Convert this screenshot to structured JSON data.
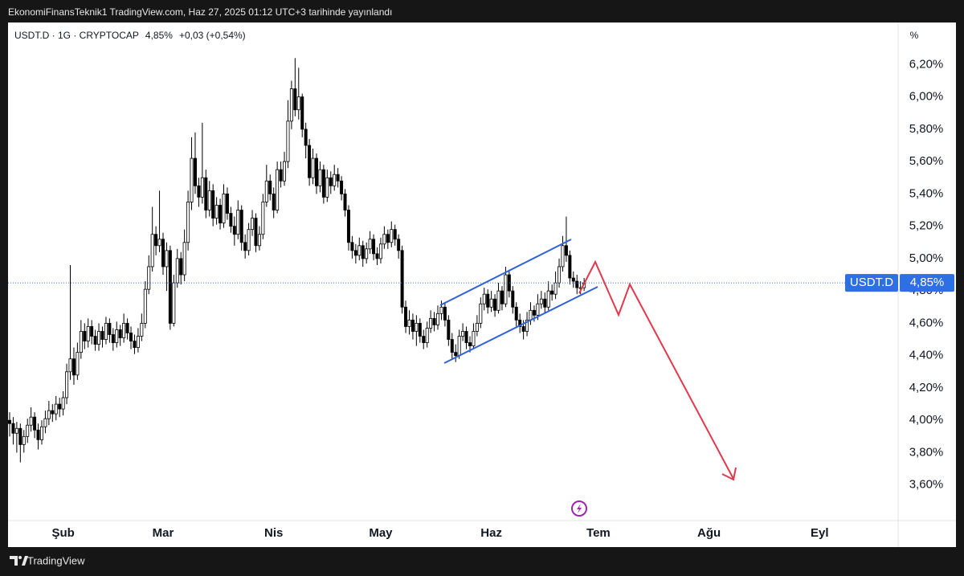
{
  "published": "EkonomiFinansTeknik1 TradingView.com, Haz 27, 2025 01:12 UTC+3 tarihinde yayınlandı",
  "footer": "TradingView",
  "chart_data": {
    "type": "candlestick",
    "symbol": "USDT.D · 1G · CRYPTOCAP",
    "price": "4,85%",
    "change": "+0,03 (+0,54%)",
    "axis_unit": "%",
    "symbol_label": "USDT.D",
    "last_price": {
      "value": 4.85,
      "label": "4,85%"
    },
    "up_color": "#ffffff",
    "down_color": "#000000",
    "wick_color": "#000000",
    "price_line_color": "#2f6fe4",
    "grid": false,
    "ylim": [
      3.38,
      6.46
    ],
    "yticks": [
      {
        "value": 3.6,
        "label": "3,60%"
      },
      {
        "value": 3.8,
        "label": "3,80%"
      },
      {
        "value": 4.0,
        "label": "4,00%"
      },
      {
        "value": 4.2,
        "label": "4,20%"
      },
      {
        "value": 4.4,
        "label": "4,40%"
      },
      {
        "value": 4.6,
        "label": "4,60%"
      },
      {
        "value": 4.8,
        "label": "4,80%"
      },
      {
        "value": 5.0,
        "label": "5,00%"
      },
      {
        "value": 5.2,
        "label": "5,20%"
      },
      {
        "value": 5.4,
        "label": "5,40%"
      },
      {
        "value": 5.6,
        "label": "5,60%"
      },
      {
        "value": 5.8,
        "label": "5,80%"
      },
      {
        "value": 6.0,
        "label": "6,00%"
      },
      {
        "value": 6.2,
        "label": "6,20%"
      }
    ],
    "categories": [
      null,
      null,
      null,
      null,
      null,
      null,
      null,
      null,
      null,
      null,
      null,
      null,
      null,
      null,
      null,
      "Şub",
      null,
      null,
      null,
      null,
      null,
      null,
      null,
      null,
      null,
      null,
      null,
      null,
      null,
      null,
      null,
      null,
      null,
      null,
      null,
      null,
      null,
      null,
      null,
      null,
      null,
      null,
      null,
      "Mar",
      null,
      null,
      null,
      null,
      null,
      null,
      null,
      null,
      null,
      null,
      null,
      null,
      null,
      null,
      null,
      null,
      null,
      null,
      null,
      null,
      null,
      null,
      null,
      null,
      null,
      null,
      null,
      null,
      null,
      null,
      "Nis",
      null,
      null,
      null,
      null,
      null,
      null,
      null,
      null,
      null,
      null,
      null,
      null,
      null,
      null,
      null,
      null,
      null,
      null,
      null,
      null,
      null,
      null,
      null,
      null,
      null,
      null,
      null,
      null,
      null,
      "May",
      null,
      null,
      null,
      null,
      null,
      null,
      null,
      null,
      null,
      null,
      null,
      null,
      null,
      null,
      null,
      null,
      null,
      null,
      null,
      null,
      null,
      null,
      null,
      null,
      null,
      null,
      null,
      null,
      null,
      null,
      "Haz",
      null,
      null,
      null,
      null,
      null,
      null,
      null,
      null,
      null,
      null,
      null,
      null,
      null,
      null,
      null,
      null,
      null,
      null,
      null,
      null,
      null,
      null,
      null,
      null,
      null,
      null,
      null,
      null,
      null,
      "Tem",
      null,
      null,
      null,
      null,
      null,
      null,
      null,
      null,
      null,
      null,
      null,
      null,
      null,
      null,
      null,
      null,
      null,
      null,
      null,
      null,
      null,
      null,
      null,
      null,
      null,
      null,
      null,
      null,
      null,
      null,
      "Ağu",
      null,
      null,
      null,
      null,
      null,
      null,
      null,
      null,
      null,
      null,
      null,
      null,
      null,
      null,
      null,
      null,
      null,
      null,
      null,
      null,
      null,
      null,
      null,
      null,
      null,
      null,
      null,
      null,
      null,
      null,
      "Eyl",
      null,
      null,
      null,
      null,
      null,
      null,
      null,
      null,
      null,
      null,
      null,
      null,
      null,
      null,
      null,
      null,
      null,
      null,
      null,
      null,
      null,
      null
    ],
    "open": [
      4.0,
      3.98,
      3.92,
      3.95,
      3.85,
      3.9,
      3.97,
      4.02,
      3.94,
      3.88,
      3.96,
      4.01,
      4.06,
      4.04,
      4.1,
      4.07,
      4.14,
      4.3,
      4.38,
      4.28,
      4.42,
      4.55,
      4.49,
      4.58,
      4.52,
      4.47,
      4.55,
      4.5,
      4.6,
      4.53,
      4.48,
      4.56,
      4.51,
      4.6,
      4.54,
      4.49,
      4.45,
      4.52,
      4.6,
      4.81,
      4.95,
      5.15,
      5.08,
      5.12,
      4.95,
      5.05,
      4.6,
      4.85,
      5.0,
      4.9,
      5.1,
      5.35,
      5.62,
      5.45,
      5.38,
      5.5,
      5.3,
      5.42,
      5.25,
      5.33,
      5.22,
      5.4,
      5.28,
      5.2,
      5.15,
      5.3,
      5.1,
      5.05,
      5.18,
      5.25,
      5.08,
      5.15,
      5.35,
      5.48,
      5.4,
      5.3,
      5.55,
      5.48,
      5.6,
      5.85,
      6.05,
      5.92,
      6.0,
      5.8,
      5.7,
      5.5,
      5.62,
      5.45,
      5.55,
      5.38,
      5.5,
      5.45,
      5.52,
      5.48,
      5.4,
      5.3,
      5.1,
      5.05,
      5.02,
      5.08,
      5.0,
      5.06,
      5.12,
      5.03,
      5.0,
      5.09,
      5.15,
      5.1,
      5.18,
      5.12,
      5.05,
      4.7,
      4.58,
      4.62,
      4.55,
      4.6,
      4.52,
      4.48,
      4.57,
      4.63,
      4.59,
      4.66,
      4.7,
      4.62,
      4.5,
      4.42,
      4.4,
      4.52,
      4.55,
      4.48,
      4.46,
      4.55,
      4.6,
      4.72,
      4.78,
      4.7,
      4.75,
      4.68,
      4.8,
      4.72,
      4.9,
      4.8,
      4.7,
      4.62,
      4.58,
      4.55,
      4.62,
      4.68,
      4.65,
      4.72,
      4.75,
      4.7,
      4.8,
      4.78,
      4.85,
      4.95,
      5.08,
      5.02,
      4.88,
      4.86,
      4.82,
      4.82,
      null,
      null,
      null,
      null,
      null,
      null,
      null,
      null,
      null,
      null,
      null,
      null,
      null,
      null,
      null,
      null,
      null,
      null,
      null,
      null,
      null,
      null,
      null,
      null,
      null,
      null,
      null,
      null,
      null,
      null,
      null,
      null,
      null,
      null,
      null,
      null,
      null,
      null,
      null,
      null,
      null,
      null,
      null,
      null,
      null,
      null,
      null,
      null,
      null,
      null,
      null,
      null,
      null,
      null,
      null,
      null,
      null,
      null,
      null,
      null,
      null,
      null,
      null,
      null,
      null,
      null,
      null,
      null,
      null,
      null,
      null,
      null,
      null,
      null,
      null,
      null,
      null,
      null,
      null,
      null,
      null,
      null,
      null,
      null,
      null,
      null,
      null,
      null
    ],
    "high": [
      4.05,
      4.02,
      3.99,
      3.98,
      3.94,
      4.01,
      4.08,
      4.05,
      3.98,
      4.0,
      4.06,
      4.12,
      4.1,
      4.15,
      4.14,
      4.18,
      4.35,
      4.96,
      4.45,
      4.48,
      4.62,
      4.6,
      4.63,
      4.62,
      4.56,
      4.6,
      4.58,
      4.64,
      4.63,
      4.57,
      4.61,
      4.59,
      4.66,
      4.63,
      4.58,
      4.53,
      4.57,
      4.66,
      4.86,
      5.02,
      5.32,
      5.2,
      5.42,
      5.16,
      5.1,
      5.08,
      4.9,
      5.06,
      5.04,
      5.18,
      5.42,
      5.75,
      5.78,
      5.5,
      5.84,
      5.55,
      5.48,
      5.46,
      5.38,
      5.37,
      5.46,
      5.44,
      5.32,
      5.26,
      5.36,
      5.33,
      5.15,
      5.22,
      5.3,
      5.28,
      5.2,
      5.4,
      5.58,
      5.52,
      5.44,
      5.6,
      5.6,
      5.66,
      5.98,
      6.1,
      6.24,
      6.18,
      6.02,
      5.84,
      5.74,
      5.68,
      5.65,
      5.6,
      5.58,
      5.55,
      5.54,
      5.58,
      5.56,
      5.51,
      5.43,
      5.33,
      5.14,
      5.09,
      5.13,
      5.11,
      5.1,
      5.17,
      5.15,
      5.07,
      5.13,
      5.2,
      5.18,
      5.23,
      5.21,
      5.15,
      5.08,
      4.74,
      4.68,
      4.66,
      4.65,
      4.63,
      4.56,
      4.61,
      4.68,
      4.67,
      4.71,
      4.74,
      4.73,
      4.65,
      4.54,
      4.47,
      4.56,
      4.6,
      4.58,
      4.52,
      4.6,
      4.65,
      4.76,
      4.82,
      4.81,
      4.8,
      4.78,
      4.85,
      4.83,
      4.95,
      4.93,
      4.83,
      4.73,
      4.66,
      4.62,
      4.67,
      4.73,
      4.71,
      4.78,
      4.8,
      4.79,
      4.86,
      4.84,
      4.92,
      5.0,
      5.14,
      5.26,
      5.05,
      4.92,
      4.9,
      4.86,
      4.88,
      null,
      null,
      null,
      null,
      null,
      null,
      null,
      null,
      null,
      null,
      null,
      null,
      null,
      null,
      null,
      null,
      null,
      null,
      null,
      null,
      null,
      null,
      null,
      null,
      null,
      null,
      null,
      null,
      null,
      null,
      null,
      null,
      null,
      null,
      null,
      null,
      null,
      null,
      null,
      null,
      null,
      null,
      null,
      null,
      null,
      null,
      null,
      null,
      null,
      null,
      null,
      null,
      null,
      null,
      null,
      null,
      null,
      null,
      null,
      null,
      null,
      null,
      null,
      null,
      null,
      null,
      null,
      null,
      null,
      null,
      null,
      null,
      null,
      null,
      null,
      null,
      null,
      null,
      null,
      null,
      null,
      null,
      null,
      null,
      null,
      null,
      null,
      null
    ],
    "low": [
      3.9,
      3.85,
      3.8,
      3.74,
      3.8,
      3.86,
      3.93,
      3.89,
      3.82,
      3.85,
      3.92,
      3.97,
      3.99,
      4.0,
      4.02,
      4.03,
      4.1,
      4.25,
      4.22,
      4.25,
      4.38,
      4.44,
      4.45,
      4.47,
      4.43,
      4.43,
      4.45,
      4.47,
      4.48,
      4.43,
      4.45,
      4.46,
      4.48,
      4.5,
      4.44,
      4.41,
      4.42,
      4.49,
      4.57,
      4.78,
      4.92,
      5.02,
      5.04,
      4.9,
      4.8,
      4.56,
      4.58,
      4.82,
      4.84,
      4.86,
      5.05,
      5.3,
      5.4,
      5.32,
      5.34,
      5.25,
      5.26,
      5.2,
      5.21,
      5.18,
      5.19,
      5.24,
      5.16,
      5.08,
      5.12,
      5.05,
      5.0,
      5.02,
      5.14,
      5.04,
      5.05,
      5.12,
      5.32,
      5.36,
      5.25,
      5.28,
      5.44,
      5.45,
      5.56,
      5.8,
      5.88,
      5.86,
      5.75,
      5.62,
      5.45,
      5.46,
      5.4,
      5.41,
      5.34,
      5.35,
      5.4,
      5.42,
      5.44,
      5.36,
      5.26,
      5.05,
      5.0,
      4.97,
      4.99,
      4.95,
      4.97,
      5.03,
      4.99,
      4.96,
      4.97,
      5.06,
      5.06,
      5.07,
      5.08,
      5.0,
      4.66,
      4.54,
      4.53,
      4.5,
      4.46,
      4.48,
      4.44,
      4.45,
      4.54,
      4.55,
      4.56,
      4.62,
      4.58,
      4.46,
      4.38,
      4.36,
      4.38,
      4.49,
      4.44,
      4.42,
      4.44,
      4.52,
      4.57,
      4.68,
      4.66,
      4.67,
      4.64,
      4.66,
      4.68,
      4.7,
      4.76,
      4.66,
      4.58,
      4.54,
      4.5,
      4.52,
      4.59,
      4.61,
      4.62,
      4.69,
      4.66,
      4.68,
      4.74,
      4.75,
      4.82,
      4.92,
      4.98,
      4.84,
      4.82,
      4.78,
      4.78,
      4.8,
      null,
      null,
      null,
      null,
      null,
      null,
      null,
      null,
      null,
      null,
      null,
      null,
      null,
      null,
      null,
      null,
      null,
      null,
      null,
      null,
      null,
      null,
      null,
      null,
      null,
      null,
      null,
      null,
      null,
      null,
      null,
      null,
      null,
      null,
      null,
      null,
      null,
      null,
      null,
      null,
      null,
      null,
      null,
      null,
      null,
      null,
      null,
      null,
      null,
      null,
      null,
      null,
      null,
      null,
      null,
      null,
      null,
      null,
      null,
      null,
      null,
      null,
      null,
      null,
      null,
      null,
      null,
      null,
      null,
      null,
      null,
      null,
      null,
      null,
      null,
      null,
      null,
      null,
      null,
      null,
      null,
      null,
      null,
      null,
      null,
      null,
      null,
      null
    ],
    "close": [
      3.98,
      3.92,
      3.95,
      3.85,
      3.9,
      3.97,
      4.02,
      3.94,
      3.88,
      3.96,
      4.01,
      4.06,
      4.04,
      4.1,
      4.07,
      4.14,
      4.3,
      4.38,
      4.28,
      4.42,
      4.55,
      4.49,
      4.58,
      4.52,
      4.47,
      4.55,
      4.5,
      4.6,
      4.53,
      4.48,
      4.56,
      4.51,
      4.6,
      4.54,
      4.49,
      4.45,
      4.52,
      4.6,
      4.81,
      4.95,
      5.15,
      5.08,
      5.12,
      4.95,
      5.05,
      4.6,
      4.85,
      5.0,
      4.9,
      5.1,
      5.35,
      5.62,
      5.45,
      5.38,
      5.5,
      5.3,
      5.42,
      5.25,
      5.33,
      5.22,
      5.4,
      5.28,
      5.2,
      5.15,
      5.3,
      5.1,
      5.05,
      5.18,
      5.25,
      5.08,
      5.15,
      5.35,
      5.48,
      5.4,
      5.3,
      5.55,
      5.48,
      5.6,
      5.85,
      6.05,
      5.92,
      6.0,
      5.8,
      5.7,
      5.5,
      5.62,
      5.45,
      5.55,
      5.38,
      5.5,
      5.45,
      5.52,
      5.48,
      5.4,
      5.3,
      5.1,
      5.05,
      5.02,
      5.08,
      5.0,
      5.06,
      5.12,
      5.03,
      5.0,
      5.09,
      5.15,
      5.1,
      5.18,
      5.12,
      5.05,
      4.7,
      4.58,
      4.62,
      4.55,
      4.6,
      4.52,
      4.48,
      4.57,
      4.63,
      4.59,
      4.66,
      4.7,
      4.62,
      4.5,
      4.42,
      4.4,
      4.52,
      4.55,
      4.48,
      4.46,
      4.55,
      4.6,
      4.72,
      4.78,
      4.7,
      4.75,
      4.68,
      4.8,
      4.72,
      4.9,
      4.8,
      4.7,
      4.62,
      4.58,
      4.55,
      4.62,
      4.68,
      4.65,
      4.72,
      4.75,
      4.7,
      4.8,
      4.78,
      4.85,
      4.95,
      5.08,
      5.02,
      4.88,
      4.86,
      4.82,
      4.82,
      4.85,
      null,
      null,
      null,
      null,
      null,
      null,
      null,
      null,
      null,
      null,
      null,
      null,
      null,
      null,
      null,
      null,
      null,
      null,
      null,
      null,
      null,
      null,
      null,
      null,
      null,
      null,
      null,
      null,
      null,
      null,
      null,
      null,
      null,
      null,
      null,
      null,
      null,
      null,
      null,
      null,
      null,
      null,
      null,
      null,
      null,
      null,
      null,
      null,
      null,
      null,
      null,
      null,
      null,
      null,
      null,
      null,
      null,
      null,
      null,
      null,
      null,
      null,
      null,
      null,
      null,
      null,
      null,
      null,
      null,
      null,
      null,
      null,
      null,
      null,
      null,
      null,
      null,
      null,
      null,
      null,
      null,
      null,
      null,
      null,
      null,
      null,
      null,
      null
    ]
  }
}
